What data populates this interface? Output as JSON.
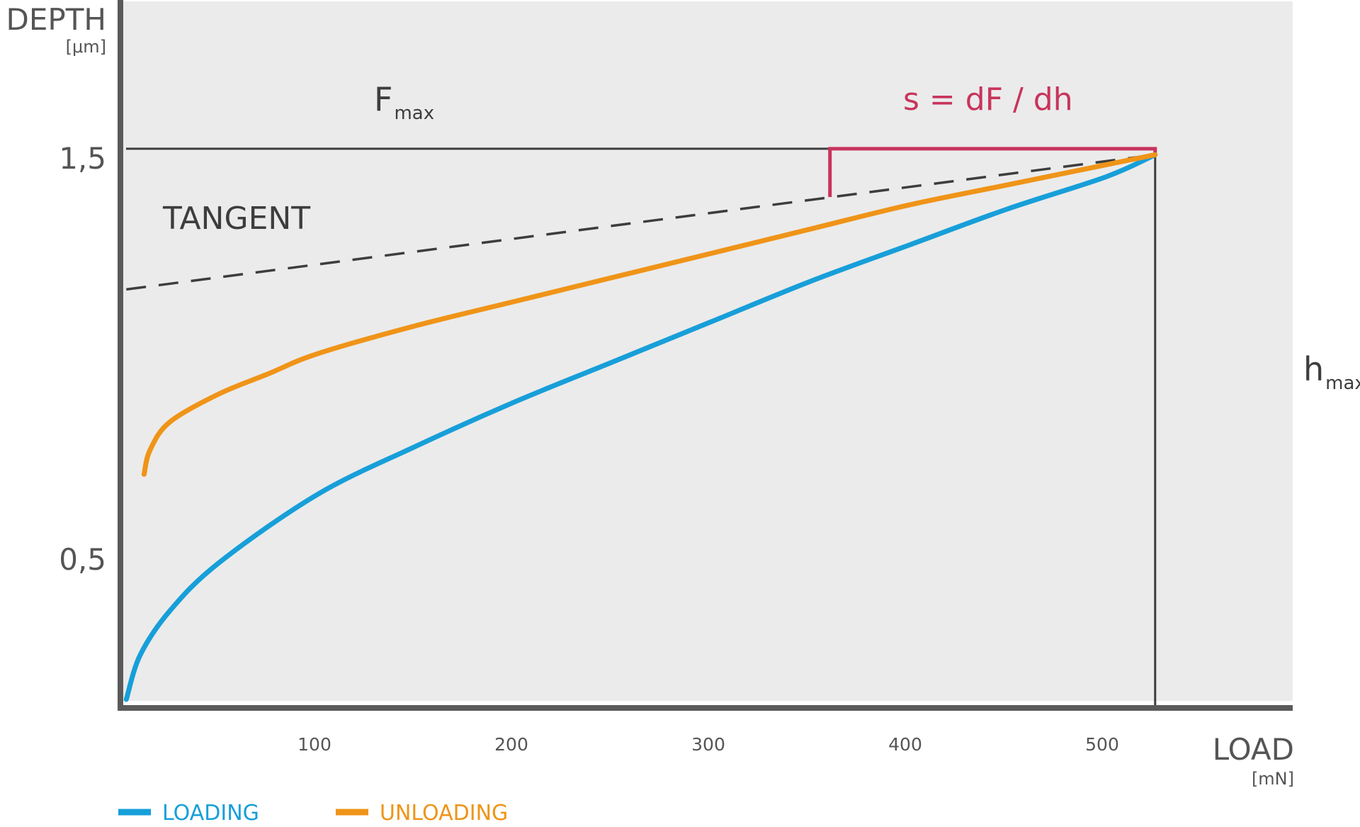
{
  "chart_data": {
    "type": "line",
    "title": "",
    "ylabel": "DEPTH",
    "yunit": "[μm]",
    "xlabel": "LOAD",
    "xunit": "[mN]",
    "x_ticks": [
      "100",
      "200",
      "300",
      "400",
      "500"
    ],
    "y_ticks": [
      "1,5",
      "0,5"
    ],
    "xlim": [
      0,
      593
    ],
    "ylim": [
      0.13,
      1.87
    ],
    "grid": false,
    "legend_position": "bottom-left",
    "series": [
      {
        "name": "LOADING",
        "color": "#179fd9",
        "points": [
          [
            3,
            0.13
          ],
          [
            10,
            0.24
          ],
          [
            25,
            0.35
          ],
          [
            50,
            0.47
          ],
          [
            100,
            0.64
          ],
          [
            150,
            0.76
          ],
          [
            200,
            0.87
          ],
          [
            250,
            0.97
          ],
          [
            300,
            1.07
          ],
          [
            350,
            1.17
          ],
          [
            400,
            1.26
          ],
          [
            450,
            1.35
          ],
          [
            500,
            1.43
          ],
          [
            525,
            1.485
          ]
        ]
      },
      {
        "name": "UNLOADING",
        "color": "#ef9418",
        "points": [
          [
            12,
            0.69
          ],
          [
            15,
            0.75
          ],
          [
            25,
            0.82
          ],
          [
            50,
            0.89
          ],
          [
            75,
            0.94
          ],
          [
            100,
            0.99
          ],
          [
            150,
            1.06
          ],
          [
            200,
            1.12
          ],
          [
            250,
            1.18
          ],
          [
            300,
            1.24
          ],
          [
            350,
            1.3
          ],
          [
            400,
            1.36
          ],
          [
            450,
            1.41
          ],
          [
            500,
            1.46
          ],
          [
            525,
            1.485
          ]
        ]
      }
    ],
    "tangent_line": {
      "color": "#3d3d3d",
      "style": "dashed",
      "points": [
        [
          3,
          1.15
        ],
        [
          525,
          1.485
        ]
      ],
      "label": "TANGENT"
    },
    "fmax_line": {
      "y": 1.5,
      "label_main": "F",
      "label_sub": "max",
      "color": "#3d3d3d"
    },
    "hmax_line": {
      "x": 525,
      "label_main": "h",
      "label_sub": "max",
      "color": "#3d3d3d"
    },
    "stiffness_triangle": {
      "x_start": 360,
      "y_top": 1.5,
      "y_bottom": 1.38,
      "x_end": 525,
      "label": "s = dF / dh",
      "color": "#c8345c"
    }
  },
  "colors": {
    "plot_background": "#ebebeb",
    "axis": "#5a5a5a",
    "text": "#555555"
  }
}
